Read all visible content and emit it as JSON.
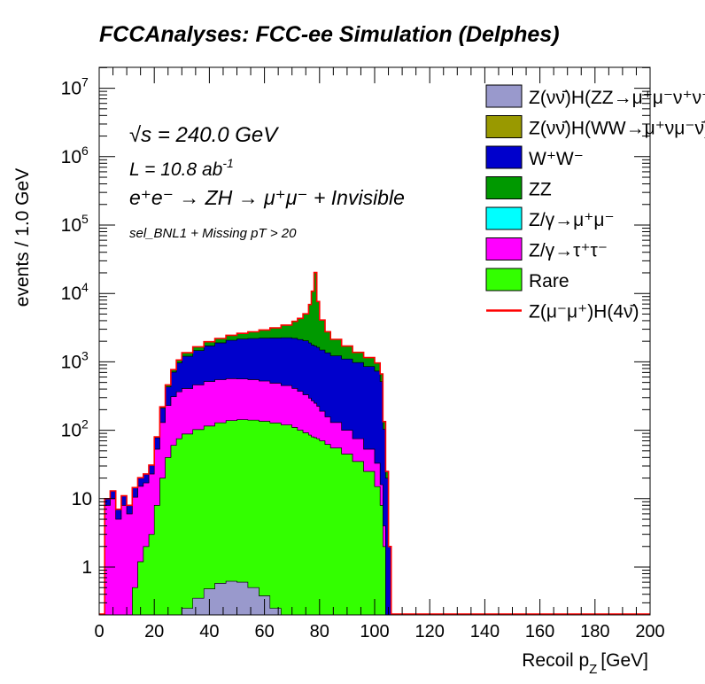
{
  "chart_data": {
    "type": "area",
    "title": "FCCAnalyses: FCC-ee Simulation (Delphes)",
    "xlabel_main": "Recoil p",
    "xlabel_sub": "Z",
    "xlabel_unit": "[GeV]",
    "ylabel": "events / 1.0 GeV",
    "xlim": [
      0,
      200
    ],
    "ylim": [
      0.2,
      20000000
    ],
    "y_scale": "log",
    "grid": false,
    "legend_position": "top-right",
    "x_ticks": [
      "0",
      "20",
      "40",
      "60",
      "80",
      "100",
      "120",
      "140",
      "160",
      "180",
      "200"
    ],
    "y_ticks": [
      {
        "value": 1,
        "base": "1",
        "exp": ""
      },
      {
        "value": 10,
        "base": "10",
        "exp": ""
      },
      {
        "value": 100,
        "base": "10",
        "exp": "2"
      },
      {
        "value": 1000,
        "base": "10",
        "exp": "3"
      },
      {
        "value": 10000,
        "base": "10",
        "exp": "4"
      },
      {
        "value": 100000,
        "base": "10",
        "exp": "5"
      },
      {
        "value": 1000000,
        "base": "10",
        "exp": "6"
      },
      {
        "value": 10000000,
        "base": "10",
        "exp": "7"
      }
    ],
    "annotations": {
      "energy": "√s = 240.0 GeV",
      "lumi_base": "L = 10.8 ab",
      "lumi_exp": "-1",
      "process": "e⁺e⁻ → ZH → μ⁺μ⁻ + Invisible",
      "selection": "sel_BNL1 + Missing pT > 20"
    },
    "stack_order": [
      "Z(νν̄)H(ZZ→μ⁺μ⁻ν⁺ν⁻)",
      "Rare",
      "Z/γ→τ⁺τ⁻",
      "Z/γ→μ⁺μ⁻",
      "W⁺W⁻",
      "ZZ"
    ],
    "x_edges": [
      0,
      2,
      4,
      6,
      8,
      10,
      12,
      14,
      16,
      18,
      20,
      22,
      24,
      26,
      28,
      30,
      34,
      38,
      42,
      46,
      50,
      54,
      58,
      62,
      66,
      70,
      72,
      74,
      76,
      77,
      78,
      79,
      80,
      82,
      84,
      88,
      92,
      96,
      100,
      102,
      103,
      104,
      105,
      106,
      107,
      108,
      200
    ],
    "series": [
      {
        "name": "Z(νν̄)H(ZZ→μ⁺μ⁻ν⁺ν⁻)",
        "color": "#9999cc",
        "values": [
          0,
          0,
          0,
          0,
          0,
          0,
          0,
          0,
          0,
          0,
          0,
          0,
          0,
          0,
          0.2,
          0.25,
          0.35,
          0.48,
          0.58,
          0.62,
          0.6,
          0.5,
          0.38,
          0.25,
          0,
          0,
          0,
          0,
          0,
          0,
          0,
          0,
          0,
          0,
          0,
          0,
          0,
          0,
          0,
          0,
          0,
          0,
          0,
          0,
          0,
          0
        ]
      },
      {
        "name": "Rare",
        "color": "#33ff00",
        "values": [
          0,
          0,
          0,
          0,
          0,
          0,
          0.5,
          1.2,
          2,
          3,
          8,
          20,
          40,
          60,
          75,
          88,
          102,
          115,
          128,
          138,
          142,
          140,
          135,
          128,
          120,
          110,
          100,
          92,
          85,
          80,
          78,
          75,
          70,
          62,
          55,
          45,
          35,
          25,
          15,
          8,
          2,
          0,
          0,
          0,
          0,
          0
        ]
      },
      {
        "name": "Z/γ→τ⁺τ⁻",
        "color": "#ff00ff",
        "values": [
          0,
          8,
          10,
          5,
          8,
          6,
          10,
          14,
          15,
          20,
          45,
          110,
          190,
          250,
          290,
          320,
          360,
          400,
          420,
          430,
          420,
          410,
          390,
          360,
          330,
          300,
          270,
          240,
          210,
          190,
          170,
          150,
          120,
          95,
          75,
          55,
          40,
          28,
          18,
          8,
          2,
          0,
          0,
          0,
          0,
          0
        ]
      },
      {
        "name": "Z/γ→μ⁺μ⁻",
        "color": "#00ffff",
        "values": [
          0,
          0,
          0,
          0,
          0,
          0,
          0,
          0,
          0,
          0,
          0,
          0,
          0,
          0,
          0,
          0,
          0,
          0,
          0,
          0,
          0,
          0,
          0,
          0,
          0,
          0,
          0,
          0,
          0,
          0,
          0,
          0,
          0,
          0,
          0,
          0,
          0,
          0,
          0,
          0,
          0,
          0,
          0,
          0,
          0,
          0
        ]
      },
      {
        "name": "W⁺W⁻",
        "color": "#0000cc",
        "values": [
          0,
          2,
          3,
          2,
          3,
          2,
          4,
          5,
          6,
          8,
          25,
          80,
          200,
          400,
          600,
          800,
          1000,
          1200,
          1350,
          1500,
          1600,
          1650,
          1700,
          1750,
          1800,
          1800,
          1750,
          1700,
          1600,
          1500,
          1450,
          1400,
          1300,
          1200,
          1100,
          1000,
          900,
          800,
          700,
          500,
          100,
          20,
          2,
          0,
          0,
          0
        ]
      },
      {
        "name": "ZZ",
        "color": "#009900",
        "values": [
          0,
          0,
          0,
          0,
          0,
          0,
          0,
          0,
          0,
          0,
          2,
          10,
          30,
          60,
          100,
          150,
          200,
          250,
          300,
          380,
          450,
          550,
          700,
          900,
          1200,
          1700,
          2200,
          3000,
          5000,
          9000,
          18500,
          6000,
          2600,
          1400,
          900,
          600,
          400,
          300,
          230,
          150,
          30,
          5,
          0,
          0,
          0,
          0
        ]
      },
      {
        "name": "Z(μ⁻μ⁺)H(4ν̄)",
        "color": "#ff0000",
        "type": "line",
        "values": [
          0,
          0,
          0,
          0,
          0,
          0,
          0,
          0,
          0,
          0,
          0,
          0,
          0,
          0,
          0,
          0,
          0,
          0,
          0,
          0,
          0,
          0,
          0,
          0,
          0,
          0,
          0,
          0,
          0,
          0,
          0,
          0,
          0,
          0,
          0,
          0,
          0,
          0,
          0,
          0,
          0,
          0,
          0,
          0,
          0,
          0
        ]
      }
    ],
    "legend": [
      {
        "label": "Z(νν̄)H(ZZ→μ⁺μ⁻ν⁺ν⁻)",
        "color": "#9999cc",
        "kind": "box"
      },
      {
        "label": "Z(νν̄)H(WW→μ⁺νμ⁻ν̄)",
        "color": "#999900",
        "kind": "box"
      },
      {
        "label": "W⁺W⁻",
        "color": "#0000cc",
        "kind": "box"
      },
      {
        "label": "ZZ",
        "color": "#009900",
        "kind": "box"
      },
      {
        "label": "Z/γ→μ⁺μ⁻",
        "color": "#00ffff",
        "kind": "box"
      },
      {
        "label": "Z/γ→τ⁺τ⁻",
        "color": "#ff00ff",
        "kind": "box"
      },
      {
        "label": "Rare",
        "color": "#33ff00",
        "kind": "box"
      },
      {
        "label": "Z(μ⁻μ⁺)H(4ν̄)",
        "color": "#ff0000",
        "kind": "line"
      }
    ]
  }
}
